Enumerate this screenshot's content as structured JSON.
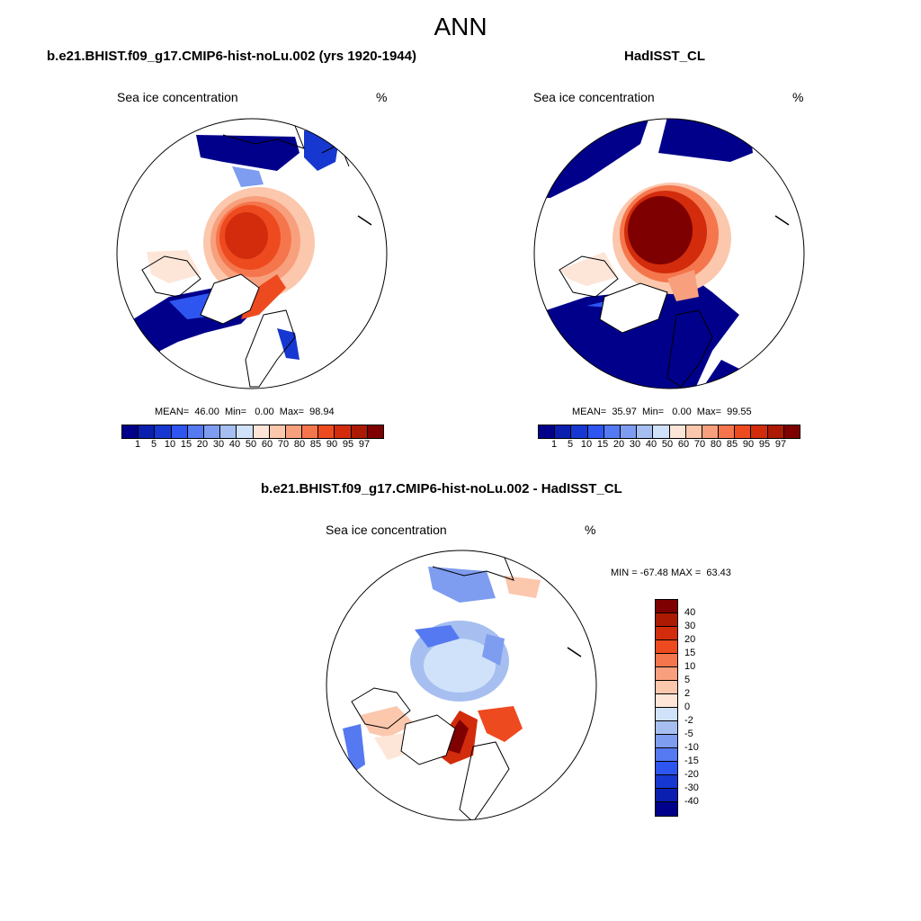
{
  "title": "ANN",
  "panels": [
    {
      "title": "b.e21.BHIST.f09_g17.CMIP6-hist-noLu.002 (yrs 1920-1944)",
      "variable": "Sea ice concentration",
      "units": "%",
      "stats": "MEAN=  46.00  Min=   0.00  Max=  98.94"
    },
    {
      "title": "HadISST_CL",
      "variable": "Sea ice concentration",
      "units": "%",
      "stats": "MEAN=  35.97  Min=   0.00  Max=  99.55"
    },
    {
      "title": "b.e21.BHIST.f09_g17.CMIP6-hist-noLu.002 - HadISST_CL",
      "variable": "Sea ice concentration",
      "units": "%",
      "stats": "MIN = -67.48 MAX =  63.43"
    }
  ],
  "colorbar_main": {
    "labels": [
      "1",
      "5",
      "10",
      "15",
      "20",
      "30",
      "40",
      "50",
      "60",
      "70",
      "80",
      "85",
      "90",
      "95",
      "97"
    ],
    "colors": [
      "#00008b",
      "#0a1fb0",
      "#1638d0",
      "#2e55f0",
      "#5579f0",
      "#7e9cf0",
      "#a6bff0",
      "#d0e2fa",
      "#fde6d8",
      "#fbc7ad",
      "#f8a07d",
      "#f5764c",
      "#ee4a1f",
      "#d22c0c",
      "#ac1a03",
      "#7f0000"
    ]
  },
  "colorbar_diff": {
    "labels": [
      "40",
      "30",
      "20",
      "15",
      "10",
      "5",
      "2",
      "0",
      "-2",
      "-5",
      "-10",
      "-15",
      "-20",
      "-30",
      "-40"
    ],
    "colors": [
      "#7f0000",
      "#ac1a03",
      "#d22c0c",
      "#ee4a1f",
      "#f5764c",
      "#f8a07d",
      "#fbc7ad",
      "#fde6d8",
      "#d0e2fa",
      "#a6bff0",
      "#7e9cf0",
      "#5579f0",
      "#2e55f0",
      "#1638d0",
      "#0a1fb0",
      "#00008b"
    ]
  }
}
